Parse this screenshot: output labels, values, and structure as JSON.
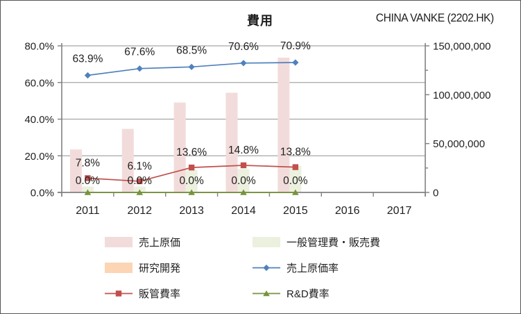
{
  "header": {
    "title": "費用",
    "brand": "CHINA VANKE (2202.HK)"
  },
  "chart_data": {
    "type": "combo (bar + line)",
    "title": "費用",
    "categories": [
      "2011",
      "2012",
      "2013",
      "2014",
      "2015",
      "2016",
      "2017"
    ],
    "left_axis": {
      "min": 0,
      "max": 80,
      "tick_values": [
        0,
        20,
        40,
        60,
        80
      ],
      "tick_labels": [
        "0.0%",
        "20.0%",
        "40.0%",
        "60.0%",
        "80.0%"
      ]
    },
    "right_axis": {
      "min": 0,
      "max": 150000000,
      "minor_step": 25000000,
      "tick_values": [
        0,
        50000000,
        100000000,
        150000000
      ],
      "tick_labels": [
        "0",
        "50,000,000",
        "100,000,000",
        "150,000,000"
      ]
    },
    "grid": "horizontal only",
    "colors": {
      "grid": "#a6a6a6",
      "axis": "#808080",
      "text": "#1f1f1f"
    },
    "series": [
      {
        "id": "cogs-bar",
        "name": "売上原価",
        "type": "bar",
        "axis": "right",
        "color": "#f2dcdb",
        "values": [
          44000000,
          65000000,
          92000000,
          102000000,
          138000000,
          null,
          null
        ]
      },
      {
        "id": "sga-bar",
        "name": "一般管理費・販売費",
        "type": "bar",
        "axis": "right",
        "color": "#ebf1de",
        "values": [
          6000000,
          6000000,
          23000000,
          24000000,
          27000000,
          null,
          null
        ]
      },
      {
        "id": "rd-bar",
        "name": "研究開発",
        "type": "bar",
        "axis": "right",
        "color": "#fcd5b4",
        "values": [
          0,
          0,
          0,
          0,
          0,
          null,
          null
        ]
      },
      {
        "id": "cogs-ratio",
        "name": "売上原価率",
        "type": "line",
        "axis": "left",
        "color": "#4f81bd",
        "marker": "diamond",
        "values": [
          63.9,
          67.6,
          68.5,
          70.6,
          70.9,
          null,
          null
        ],
        "labels": [
          "63.9%",
          "67.6%",
          "68.5%",
          "70.6%",
          "70.9%"
        ]
      },
      {
        "id": "sga-ratio",
        "name": "販管費率",
        "type": "line",
        "axis": "left",
        "color": "#c0504d",
        "marker": "square",
        "values": [
          7.8,
          6.1,
          13.6,
          14.8,
          13.8,
          null,
          null
        ],
        "labels": [
          "7.8%",
          "6.1%",
          "13.6%",
          "14.8%",
          "13.8%"
        ]
      },
      {
        "id": "rd-ratio",
        "name": "R&D費率",
        "type": "line",
        "axis": "left",
        "color": "#77933c",
        "marker": "triangle",
        "values": [
          0,
          0,
          0,
          0,
          0,
          null,
          null
        ],
        "labels": [
          "0.0%",
          "0.0%",
          "0.0%",
          "0.0%",
          "0.0%"
        ]
      }
    ],
    "legend_position": "bottom, two columns"
  },
  "legend": {
    "items": [
      {
        "label": "売上原価",
        "kind": "bar",
        "color": "#f2dcdb"
      },
      {
        "label": "一般管理費・販売費",
        "kind": "bar",
        "color": "#ebf1de"
      },
      {
        "label": "研究開発",
        "kind": "bar",
        "color": "#fcd5b4"
      },
      {
        "label": "売上原価率",
        "kind": "line",
        "marker": "diamond",
        "color": "#4f81bd"
      },
      {
        "label": "販管費率",
        "kind": "line",
        "marker": "square",
        "color": "#c0504d"
      },
      {
        "label": "R&D費率",
        "kind": "line",
        "marker": "triangle",
        "color": "#77933c"
      }
    ]
  }
}
